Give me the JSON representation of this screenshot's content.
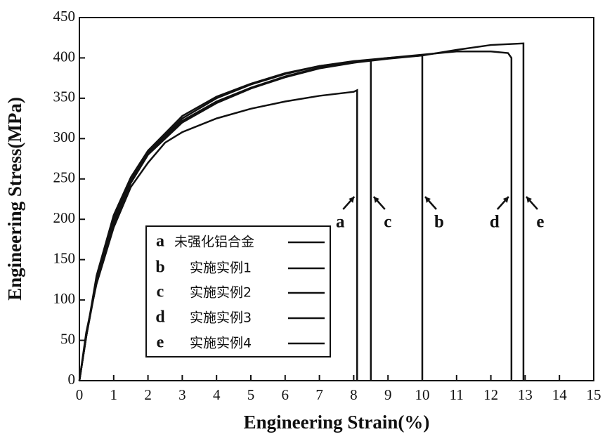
{
  "chart_data": {
    "type": "line",
    "x_label": "Engineering Strain(%)",
    "y_label": "Engineering Stress(MPa)",
    "xlim": [
      0,
      15
    ],
    "xticks": [
      0,
      1,
      2,
      3,
      4,
      5,
      6,
      7,
      8,
      9,
      10,
      11,
      12,
      13,
      14,
      15
    ],
    "ylim": [
      0,
      450
    ],
    "yticks": [
      0,
      50,
      100,
      150,
      200,
      250,
      300,
      350,
      400,
      450
    ],
    "series": [
      {
        "label": "a",
        "name": "未强化铝合金",
        "color": "#111111",
        "x": [
          0,
          0.2,
          0.5,
          1,
          1.5,
          2,
          2.5,
          3,
          4,
          5,
          6,
          7,
          8,
          8.1,
          8.1
        ],
        "values": [
          0,
          60,
          120,
          190,
          240,
          270,
          295,
          308,
          325,
          337,
          346,
          353,
          358,
          360,
          0
        ]
      },
      {
        "label": "b",
        "name": "实施实例1",
        "color": "#111111",
        "x": [
          0,
          0.2,
          0.5,
          1,
          1.5,
          2,
          3,
          4,
          5,
          6,
          7,
          8,
          9,
          10,
          10
        ],
        "values": [
          0,
          55,
          125,
          200,
          248,
          283,
          325,
          350,
          367,
          380,
          390,
          396,
          400,
          403,
          0
        ]
      },
      {
        "label": "c",
        "name": "实施实例2",
        "color": "#111111",
        "x": [
          0,
          0.2,
          0.5,
          1,
          1.5,
          2,
          3,
          4,
          5,
          6,
          7,
          8,
          8.5,
          8.5
        ],
        "values": [
          0,
          55,
          130,
          205,
          252,
          285,
          328,
          352,
          368,
          381,
          390,
          395,
          397,
          0
        ]
      },
      {
        "label": "d",
        "name": "实施实例3",
        "color": "#111111",
        "x": [
          0,
          0.2,
          0.5,
          1,
          1.5,
          2,
          3,
          4,
          5,
          6,
          7,
          8,
          9,
          10,
          11,
          12,
          12.5,
          12.6,
          12.6
        ],
        "values": [
          0,
          55,
          125,
          198,
          247,
          282,
          322,
          346,
          363,
          377,
          388,
          395,
          400,
          404,
          408,
          408,
          406,
          400,
          0
        ]
      },
      {
        "label": "e",
        "name": "实施实例4",
        "color": "#111111",
        "x": [
          0,
          0.2,
          0.5,
          1,
          1.5,
          2,
          3,
          4,
          5,
          6,
          7,
          8,
          9,
          10,
          11,
          12,
          12.95,
          12.95
        ],
        "values": [
          0,
          55,
          122,
          195,
          245,
          280,
          320,
          344,
          362,
          376,
          387,
          394,
          399,
          403,
          410,
          416,
          418,
          0
        ]
      }
    ]
  }
}
